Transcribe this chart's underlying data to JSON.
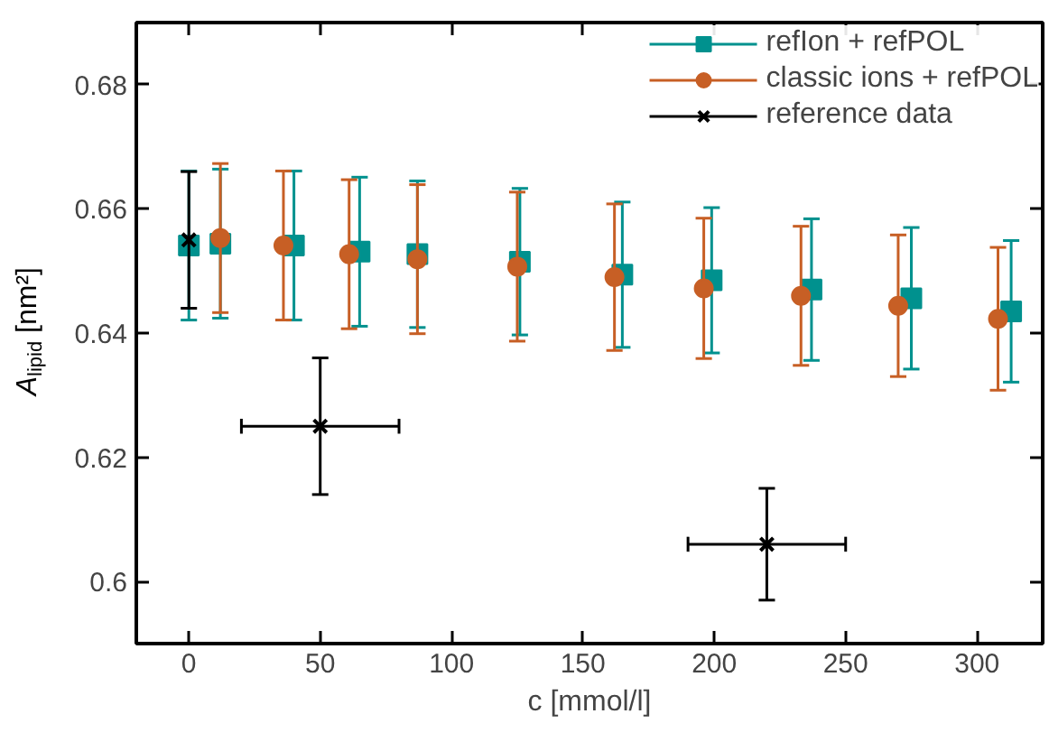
{
  "chart_data": {
    "type": "scatter",
    "xlabel": "c [mmol/l]",
    "ylabel": "A$_{lipid}$ [nm²]",
    "xlim": [
      -20,
      325
    ],
    "xticks": [
      0,
      50,
      100,
      150,
      200,
      250,
      300
    ],
    "ylim": [
      0.59,
      0.69
    ],
    "yticks": [
      {
        "value": 0.6,
        "label": "0.6"
      },
      0.62,
      0.64,
      0.66,
      0.68
    ],
    "grid": false,
    "legend": "top right",
    "series": [
      {
        "name": "refIon + refPOL",
        "color": "#00918e",
        "marker": "square",
        "x": [
          0,
          12,
          40,
          65,
          87,
          126,
          165,
          199,
          237,
          275,
          313
        ],
        "values": [
          0.6541,
          0.6544,
          0.6541,
          0.6531,
          0.6527,
          0.6515,
          0.6494,
          0.6485,
          0.647,
          0.6456,
          0.6435
        ],
        "errors": [
          0.012,
          0.012,
          0.012,
          0.012,
          0.0118,
          0.0118,
          0.0117,
          0.0117,
          0.0114,
          0.0114,
          0.0114
        ]
      },
      {
        "name": "classic ions + refPOL",
        "color": "#c75f25",
        "marker": "circle",
        "x": [
          12,
          36,
          61,
          87,
          125,
          162,
          196,
          233,
          270,
          308
        ],
        "values": [
          0.6553,
          0.6541,
          0.6527,
          0.6519,
          0.6507,
          0.649,
          0.6472,
          0.646,
          0.6444,
          0.6423
        ],
        "errors": [
          0.012,
          0.012,
          0.012,
          0.012,
          0.012,
          0.0118,
          0.0113,
          0.0112,
          0.0114,
          0.0115
        ]
      },
      {
        "name": "reference data",
        "color": "#000000",
        "marker": "cross",
        "x": [
          0,
          50,
          220
        ],
        "values": [
          0.655,
          0.625,
          0.606
        ],
        "errors": [
          0.011,
          0.011,
          0.009
        ],
        "xerrors": [
          null,
          30,
          30
        ]
      }
    ]
  }
}
